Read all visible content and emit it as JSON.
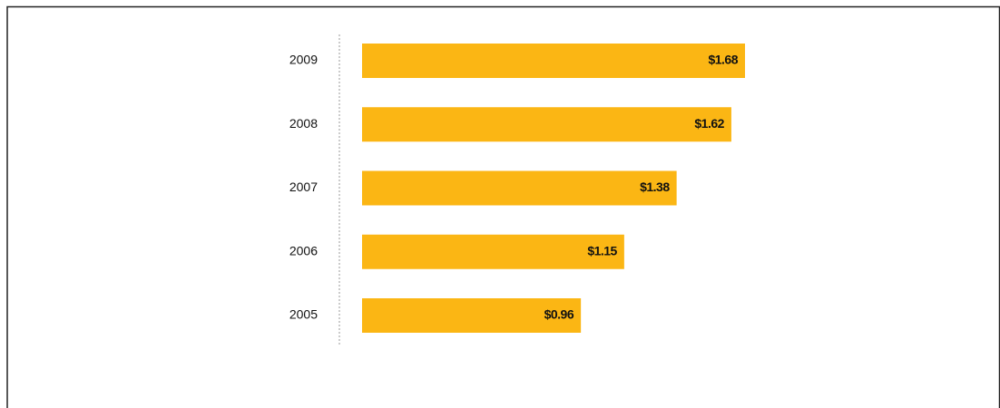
{
  "chart_data": {
    "type": "bar",
    "orientation": "horizontal",
    "categories": [
      "2009",
      "2008",
      "2007",
      "2006",
      "2005"
    ],
    "values": [
      1.68,
      1.62,
      1.38,
      1.15,
      0.96
    ],
    "value_labels": [
      "$1.68",
      "$1.62",
      "$1.38",
      "$1.15",
      "$0.96"
    ],
    "color": "#fbb614"
  }
}
